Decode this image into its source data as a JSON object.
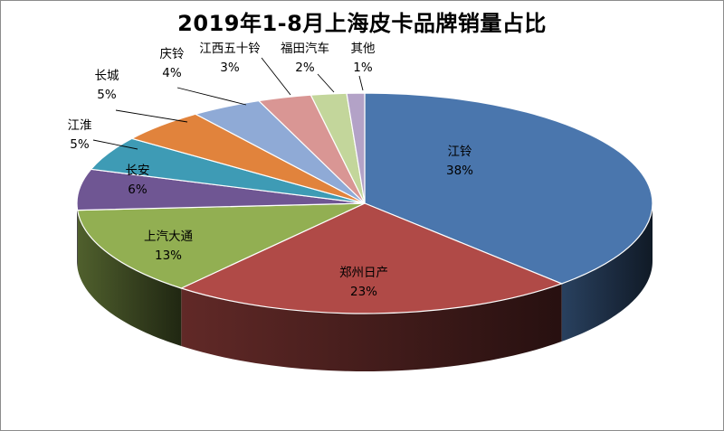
{
  "chart_data": {
    "type": "pie",
    "title": "2019年1-8月上海皮卡品牌销量占比",
    "slices": [
      {
        "label": "江铃",
        "value": 38,
        "value_label": "38%",
        "color": "#4a76ad",
        "label_inside": true
      },
      {
        "label": "郑州日产",
        "value": 23,
        "value_label": "23%",
        "color": "#b04a47",
        "label_inside": true
      },
      {
        "label": "上汽大通",
        "value": 13,
        "value_label": "13%",
        "color": "#92af52",
        "label_inside": true
      },
      {
        "label": "长安",
        "value": 6,
        "value_label": "6%",
        "color": "#6f5693",
        "label_inside": true
      },
      {
        "label": "江淮",
        "value": 5,
        "value_label": "5%",
        "color": "#3e9bb5",
        "label_inside": false
      },
      {
        "label": "长城",
        "value": 5,
        "value_label": "5%",
        "color": "#e1833c",
        "label_inside": false
      },
      {
        "label": "庆铃",
        "value": 4,
        "value_label": "4%",
        "color": "#8faad6",
        "label_inside": false
      },
      {
        "label": "江西五十铃",
        "value": 3,
        "value_label": "3%",
        "color": "#d99694",
        "label_inside": false
      },
      {
        "label": "福田汽车",
        "value": 2,
        "value_label": "2%",
        "color": "#c3d69b",
        "label_inside": false
      },
      {
        "label": "其他",
        "value": 1,
        "value_label": "1%",
        "color": "#b3a2c7",
        "label_inside": false
      }
    ],
    "style": "3d-pie",
    "legend": "none"
  }
}
